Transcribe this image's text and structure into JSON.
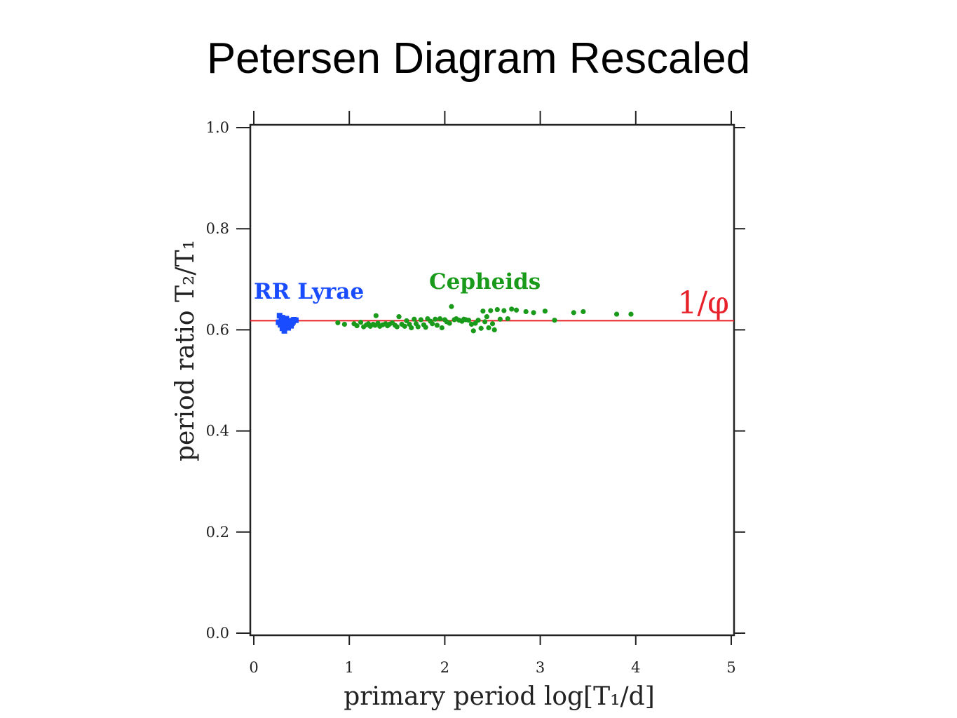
{
  "slide": {
    "title": "Petersen Diagram Rescaled"
  },
  "colors": {
    "rr_lyrae": "#1a4cff",
    "cepheids": "#1a9a1a",
    "golden_line": "#e8202a",
    "axis": "#222222"
  },
  "chart_data": {
    "type": "scatter",
    "xlabel": "primary period log[T₁/d]",
    "ylabel": "period ratio T₂/T₁",
    "xlim": [
      0,
      5
    ],
    "ylim": [
      0,
      1
    ],
    "xticks": [
      "0",
      "1",
      "2",
      "3",
      "4",
      "5"
    ],
    "yticks": [
      "0.0",
      "0.2",
      "0.4",
      "0.6",
      "0.8",
      "1.0"
    ],
    "grid": false,
    "annotations": [
      {
        "text": "RR Lyrae",
        "color": "#1a4cff"
      },
      {
        "text": "Cepheids",
        "color": "#1a9a1a"
      },
      {
        "text": "1/φ",
        "color": "#e8202a"
      }
    ],
    "reference_line": {
      "y": 0.618,
      "color": "#e8202a",
      "label": "1/φ"
    },
    "series": [
      {
        "name": "RR Lyrae",
        "marker": "square",
        "color": "#1a4cff",
        "points": [
          [
            0.27,
            0.628
          ],
          [
            0.29,
            0.62
          ],
          [
            0.31,
            0.612
          ],
          [
            0.33,
            0.604
          ],
          [
            0.35,
            0.616
          ],
          [
            0.37,
            0.61
          ],
          [
            0.3,
            0.603
          ],
          [
            0.34,
            0.622
          ],
          [
            0.38,
            0.618
          ],
          [
            0.4,
            0.613
          ],
          [
            0.42,
            0.62
          ],
          [
            0.28,
            0.61
          ],
          [
            0.32,
            0.598
          ],
          [
            0.36,
            0.604
          ],
          [
            0.39,
            0.608
          ],
          [
            0.41,
            0.616
          ],
          [
            0.44,
            0.619
          ],
          [
            0.26,
            0.615
          ],
          [
            0.3,
            0.624
          ],
          [
            0.35,
            0.606
          ]
        ]
      },
      {
        "name": "Cepheids",
        "marker": "circle",
        "color": "#1a9a1a",
        "points": [
          [
            0.88,
            0.614
          ],
          [
            0.95,
            0.611
          ],
          [
            1.05,
            0.612
          ],
          [
            1.08,
            0.608
          ],
          [
            1.12,
            0.615
          ],
          [
            1.15,
            0.606
          ],
          [
            1.18,
            0.61
          ],
          [
            1.2,
            0.612
          ],
          [
            1.22,
            0.607
          ],
          [
            1.25,
            0.611
          ],
          [
            1.27,
            0.609
          ],
          [
            1.28,
            0.628
          ],
          [
            1.3,
            0.613
          ],
          [
            1.32,
            0.607
          ],
          [
            1.35,
            0.61
          ],
          [
            1.38,
            0.612
          ],
          [
            1.4,
            0.608
          ],
          [
            1.42,
            0.611
          ],
          [
            1.45,
            0.614
          ],
          [
            1.48,
            0.609
          ],
          [
            1.5,
            0.606
          ],
          [
            1.52,
            0.626
          ],
          [
            1.55,
            0.611
          ],
          [
            1.58,
            0.607
          ],
          [
            1.6,
            0.618
          ],
          [
            1.63,
            0.611
          ],
          [
            1.65,
            0.604
          ],
          [
            1.68,
            0.621
          ],
          [
            1.7,
            0.612
          ],
          [
            1.72,
            0.606
          ],
          [
            1.75,
            0.62
          ],
          [
            1.78,
            0.61
          ],
          [
            1.8,
            0.605
          ],
          [
            1.82,
            0.622
          ],
          [
            1.85,
            0.617
          ],
          [
            1.87,
            0.612
          ],
          [
            1.9,
            0.621
          ],
          [
            1.92,
            0.609
          ],
          [
            1.95,
            0.622
          ],
          [
            1.97,
            0.604
          ],
          [
            2.0,
            0.62
          ],
          [
            2.02,
            0.616
          ],
          [
            2.05,
            0.613
          ],
          [
            2.07,
            0.646
          ],
          [
            2.1,
            0.62
          ],
          [
            2.12,
            0.622
          ],
          [
            2.15,
            0.619
          ],
          [
            2.18,
            0.617
          ],
          [
            2.2,
            0.621
          ],
          [
            2.22,
            0.62
          ],
          [
            2.25,
            0.619
          ],
          [
            2.28,
            0.611
          ],
          [
            2.3,
            0.598
          ],
          [
            2.32,
            0.613
          ],
          [
            2.35,
            0.619
          ],
          [
            2.38,
            0.603
          ],
          [
            2.4,
            0.637
          ],
          [
            2.42,
            0.616
          ],
          [
            2.44,
            0.626
          ],
          [
            2.46,
            0.604
          ],
          [
            2.48,
            0.638
          ],
          [
            2.5,
            0.612
          ],
          [
            2.52,
            0.6
          ],
          [
            2.55,
            0.64
          ],
          [
            2.58,
            0.621
          ],
          [
            2.62,
            0.638
          ],
          [
            2.66,
            0.622
          ],
          [
            2.7,
            0.641
          ],
          [
            2.75,
            0.639
          ],
          [
            2.85,
            0.636
          ],
          [
            2.93,
            0.634
          ],
          [
            3.05,
            0.637
          ],
          [
            3.15,
            0.619
          ],
          [
            3.35,
            0.634
          ],
          [
            3.45,
            0.636
          ],
          [
            3.8,
            0.631
          ],
          [
            3.95,
            0.631
          ]
        ]
      }
    ]
  }
}
